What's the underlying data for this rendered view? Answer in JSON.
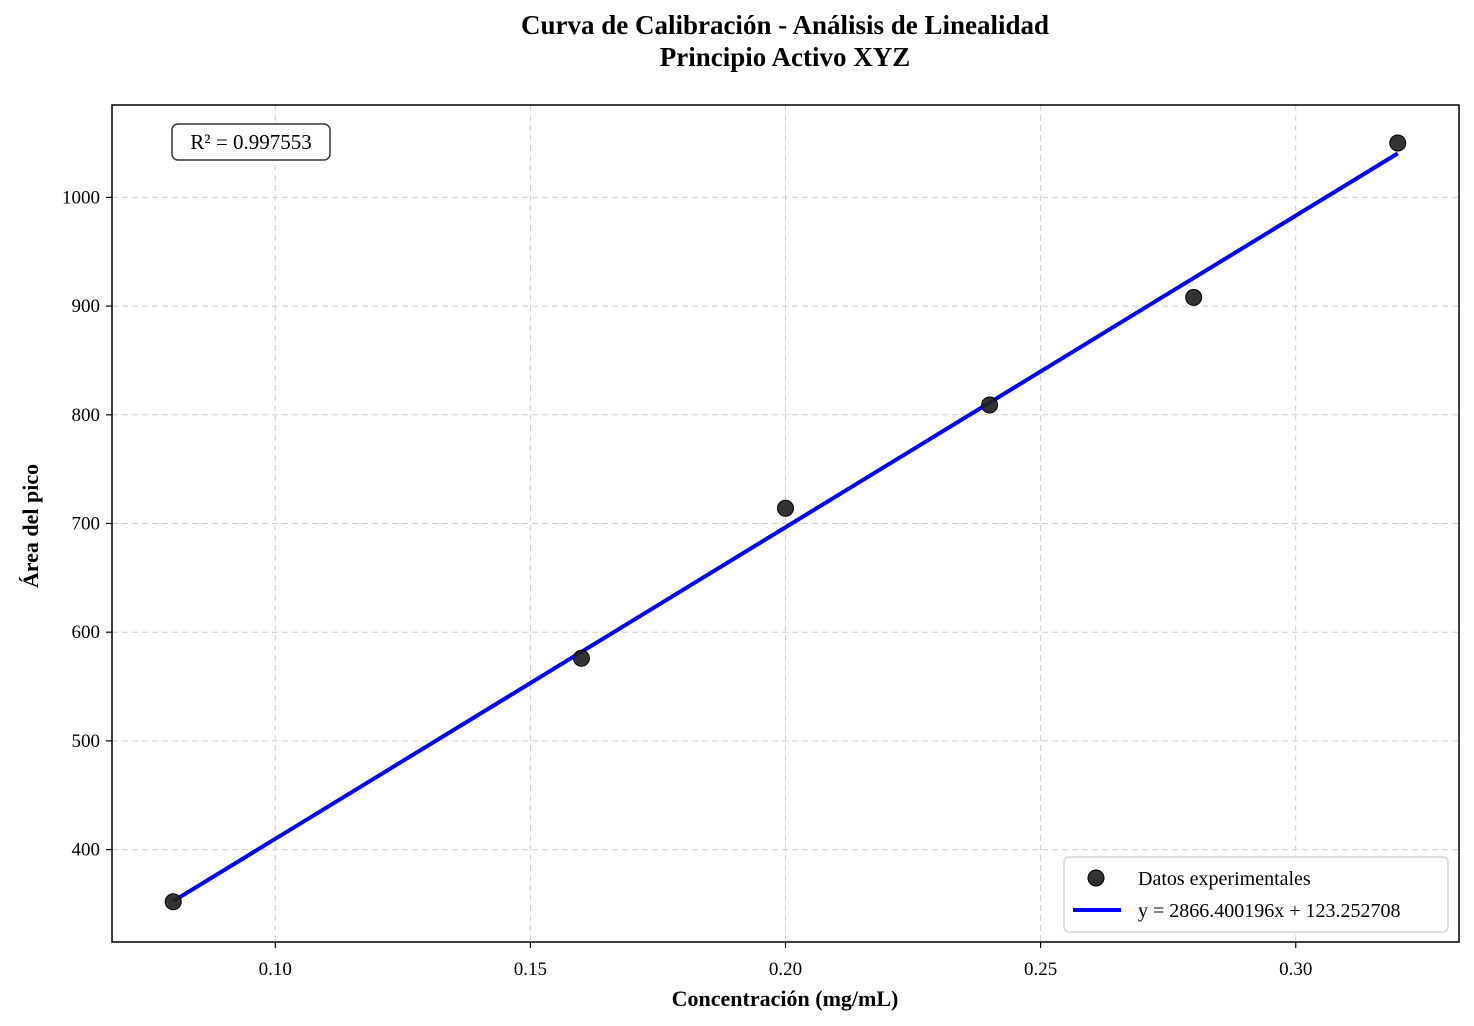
{
  "chart_data": {
    "type": "scatter",
    "title": "Curva de Calibración - Análisis de Linealidad",
    "subtitle": "Principio Activo XYZ",
    "xlabel": "Concentración (mg/mL)",
    "ylabel": "Área del pico",
    "xlim": [
      0.068,
      0.332
    ],
    "ylim": [
      315,
      1085
    ],
    "x_ticks": [
      0.1,
      0.15,
      0.2,
      0.25,
      0.3
    ],
    "x_tick_labels": [
      "0.10",
      "0.15",
      "0.20",
      "0.25",
      "0.30"
    ],
    "y_ticks": [
      400,
      500,
      600,
      700,
      800,
      900,
      1000
    ],
    "y_tick_labels": [
      "400",
      "500",
      "600",
      "700",
      "800",
      "900",
      "1000"
    ],
    "grid": true,
    "legend_position": "bottom-right",
    "series": [
      {
        "name": "Datos experimentales",
        "kind": "scatter",
        "color": "#222222",
        "x": [
          0.08,
          0.16,
          0.2,
          0.24,
          0.28,
          0.32
        ],
        "y": [
          352,
          576,
          714,
          809,
          908,
          1050
        ]
      },
      {
        "name": "y = 2866.400196x + 123.252708",
        "kind": "line",
        "color": "#0000ff",
        "slope": 2866.400196,
        "intercept": 123.252708,
        "x": [
          0.08,
          0.32
        ]
      }
    ],
    "annotation": "R² = 0.997553"
  }
}
